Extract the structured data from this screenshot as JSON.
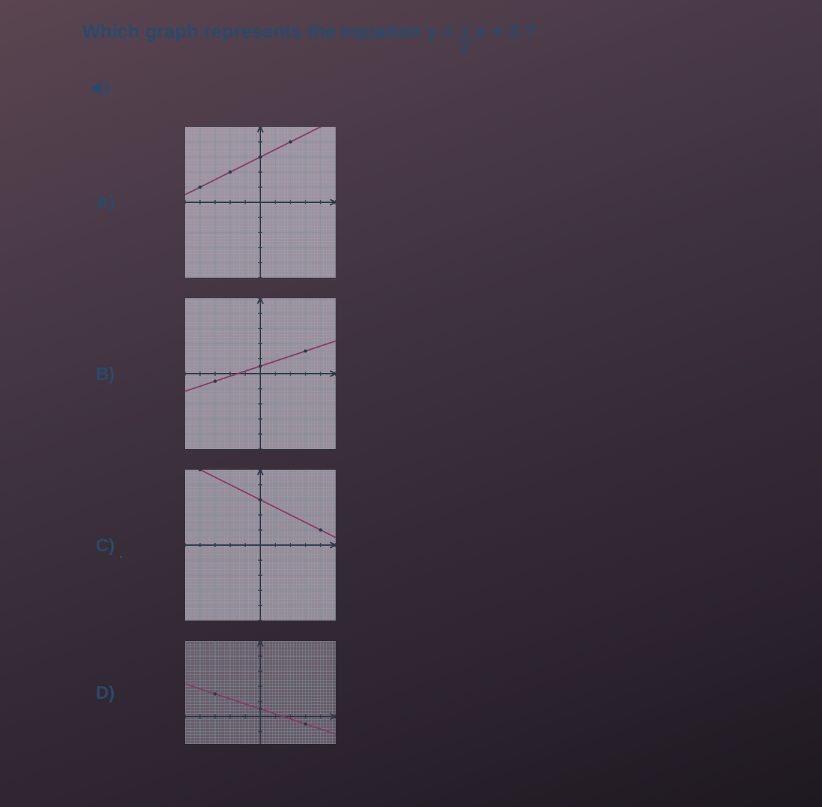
{
  "question": {
    "prefix": "Which graph represents the equation y = ",
    "numerator": "1",
    "denominator": "2",
    "suffix": "x + 3 ?"
  },
  "audio_icon_color": "#2a4a6a",
  "charts": {
    "common": {
      "xlim": [
        -5,
        5
      ],
      "ylim": [
        -5,
        5
      ],
      "tick_step": 1,
      "background_color": "rgba(230,220,235,0.55)",
      "grid_color": "#7a90a0",
      "minor_grid_color": "#a0aab5",
      "axis_color": "#2a3a4a",
      "line_color": "#8a3a6a",
      "line_width": 2,
      "minor_divisions": 5
    },
    "options": [
      {
        "label": "A)",
        "type": "line",
        "y_intercept": 3,
        "slope": 0.5,
        "points": [
          [
            -4,
            1
          ],
          [
            -2,
            2
          ],
          [
            0,
            3
          ],
          [
            2,
            4
          ]
        ]
      },
      {
        "label": "B)",
        "type": "line",
        "y_intercept": 0.5,
        "slope": 0.333,
        "points": [
          [
            -3,
            -0.5
          ],
          [
            0,
            0.5
          ],
          [
            3,
            1.5
          ]
        ]
      },
      {
        "label": "C)",
        "type": "line",
        "y_intercept": 3,
        "slope": -0.5,
        "points": [
          [
            -4,
            5
          ],
          [
            0,
            3
          ],
          [
            4,
            1
          ]
        ]
      },
      {
        "label": "D)",
        "type": "line",
        "y_intercept": 0.5,
        "slope": -0.333,
        "points": [
          [
            -3,
            1.5
          ],
          [
            0,
            0.5
          ],
          [
            3,
            -0.5
          ]
        ]
      }
    ]
  }
}
